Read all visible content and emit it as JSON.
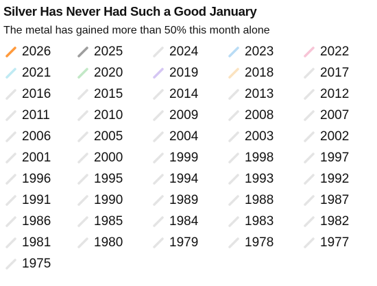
{
  "chart_data": {
    "type": "line",
    "title": "Silver Has Never Had Such a Good January",
    "subtitle": "The metal has gained more than 50% this month alone",
    "legend_placement": "top",
    "colors": {
      "highlight": "#ff9a3c",
      "prior_year": "#9d9d9d",
      "other_years": "#e4e4e4"
    },
    "series": [
      {
        "name": "2026",
        "color": "#ff9a3c"
      },
      {
        "name": "2025",
        "color": "#9d9d9d"
      },
      {
        "name": "2024",
        "color": "#e4e4e4"
      },
      {
        "name": "2023",
        "color": "#b9dcf5"
      },
      {
        "name": "2022",
        "color": "#f7c4d6"
      },
      {
        "name": "2021",
        "color": "#bfeaf3"
      },
      {
        "name": "2020",
        "color": "#c2e8c6"
      },
      {
        "name": "2019",
        "color": "#d5c6f3"
      },
      {
        "name": "2018",
        "color": "#fbe3c0"
      },
      {
        "name": "2017",
        "color": "#e4e4e4"
      },
      {
        "name": "2016",
        "color": "#e4e4e4"
      },
      {
        "name": "2015",
        "color": "#e4e4e4"
      },
      {
        "name": "2014",
        "color": "#e4e4e4"
      },
      {
        "name": "2013",
        "color": "#e4e4e4"
      },
      {
        "name": "2012",
        "color": "#e4e4e4"
      },
      {
        "name": "2011",
        "color": "#e4e4e4"
      },
      {
        "name": "2010",
        "color": "#e4e4e4"
      },
      {
        "name": "2009",
        "color": "#e4e4e4"
      },
      {
        "name": "2008",
        "color": "#e4e4e4"
      },
      {
        "name": "2007",
        "color": "#e4e4e4"
      },
      {
        "name": "2006",
        "color": "#e4e4e4"
      },
      {
        "name": "2005",
        "color": "#e4e4e4"
      },
      {
        "name": "2004",
        "color": "#e4e4e4"
      },
      {
        "name": "2003",
        "color": "#e4e4e4"
      },
      {
        "name": "2002",
        "color": "#e4e4e4"
      },
      {
        "name": "2001",
        "color": "#e4e4e4"
      },
      {
        "name": "2000",
        "color": "#e4e4e4"
      },
      {
        "name": "1999",
        "color": "#e4e4e4"
      },
      {
        "name": "1998",
        "color": "#e4e4e4"
      },
      {
        "name": "1997",
        "color": "#e4e4e4"
      },
      {
        "name": "1996",
        "color": "#e4e4e4"
      },
      {
        "name": "1995",
        "color": "#e4e4e4"
      },
      {
        "name": "1994",
        "color": "#e4e4e4"
      },
      {
        "name": "1993",
        "color": "#e4e4e4"
      },
      {
        "name": "1992",
        "color": "#e4e4e4"
      },
      {
        "name": "1991",
        "color": "#e4e4e4"
      },
      {
        "name": "1990",
        "color": "#e4e4e4"
      },
      {
        "name": "1989",
        "color": "#e4e4e4"
      },
      {
        "name": "1988",
        "color": "#e4e4e4"
      },
      {
        "name": "1987",
        "color": "#e4e4e4"
      },
      {
        "name": "1986",
        "color": "#e4e4e4"
      },
      {
        "name": "1985",
        "color": "#e4e4e4"
      },
      {
        "name": "1984",
        "color": "#e4e4e4"
      },
      {
        "name": "1983",
        "color": "#e4e4e4"
      },
      {
        "name": "1982",
        "color": "#e4e4e4"
      },
      {
        "name": "1981",
        "color": "#e4e4e4"
      },
      {
        "name": "1980",
        "color": "#e4e4e4"
      },
      {
        "name": "1979",
        "color": "#e4e4e4"
      },
      {
        "name": "1978",
        "color": "#e4e4e4"
      },
      {
        "name": "1977",
        "color": "#e4e4e4"
      },
      {
        "name": "1975",
        "color": "#e4e4e4"
      }
    ]
  }
}
